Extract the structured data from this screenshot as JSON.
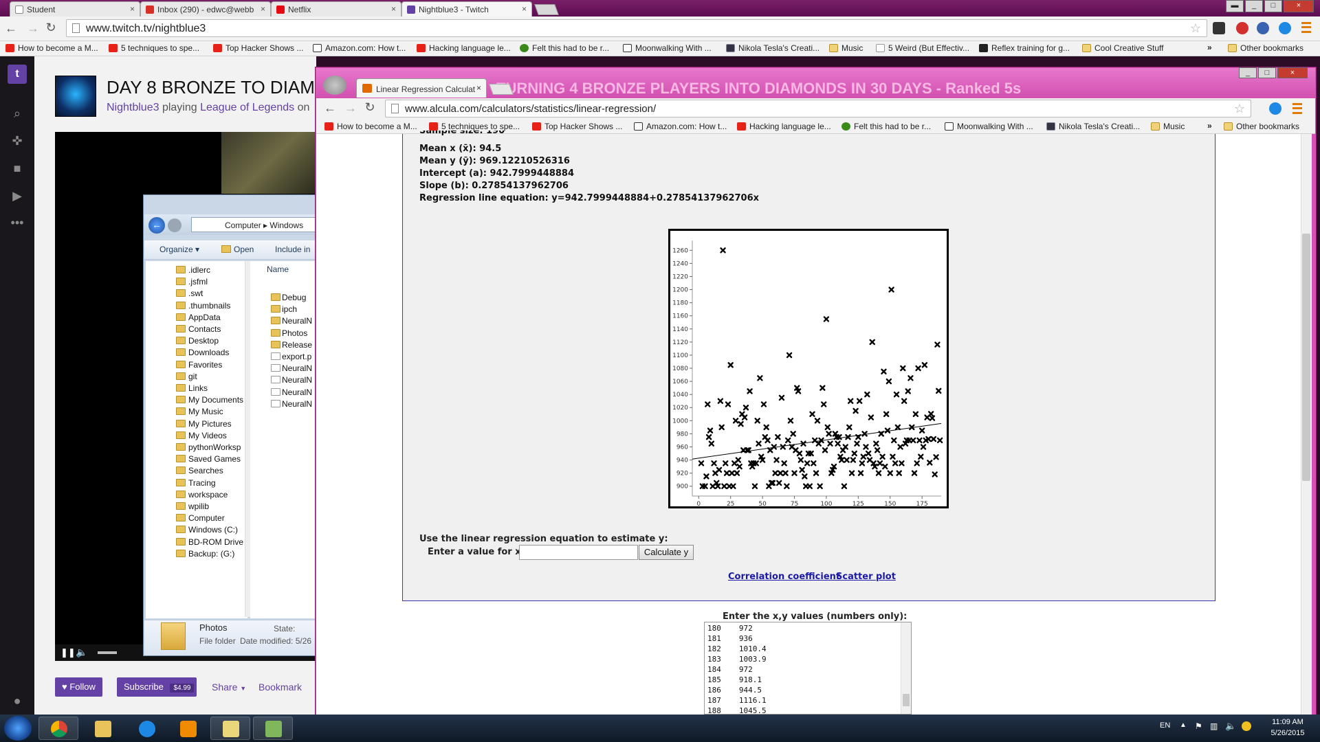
{
  "outer_browser": {
    "tabs": [
      {
        "label": "Student",
        "color": "#ffffff"
      },
      {
        "label": "Inbox (290) - edwc@webb",
        "color": "#d93025"
      },
      {
        "label": "Netflix",
        "color": "#e50914"
      },
      {
        "label": "Nightblue3 - Twitch",
        "color": "#6441a5"
      }
    ],
    "url": "www.twitch.tv/nightblue3",
    "bookmarks": [
      "How to become a M...",
      "5 techniques to spe...",
      "Top Hacker Shows ...",
      "Amazon.com: How t...",
      "Hacking language le...",
      "Felt this had to be r...",
      "Moonwalking With ...",
      "Nikola Tesla's Creati...",
      "Music",
      "5 Weird (But Effectiv...",
      "Reflex training for g...",
      "Cool Creative Stuff"
    ],
    "bookmark_overflow": "»",
    "other_bookmarks": "Other bookmarks"
  },
  "twitch": {
    "title": "DAY 8 BRONZE TO DIAM",
    "channel": "Nightblue3",
    "playing_word": "playing",
    "game": "League of Legends",
    "on_word": "on",
    "follow_label": "Follow",
    "subscribe_label": "Subscribe",
    "subscribe_price": "$4.99",
    "share_label": "Share",
    "bookmark_label": "Bookmark"
  },
  "explorer": {
    "breadcrumb": [
      "Computer",
      "Windows"
    ],
    "organize_label": "Organize",
    "open_label": "Open",
    "include_label": "Include in",
    "name_header": "Name",
    "tree": [
      ".idlerc",
      ".jsfml",
      ".swt",
      ".thumbnails",
      "AppData",
      "Contacts",
      "Desktop",
      "Downloads",
      "Favorites",
      "git",
      "Links",
      "My Documents",
      "My Music",
      "My Pictures",
      "My Videos",
      "pythonWorksp",
      "Saved Games",
      "Searches",
      "Tracing",
      "workspace",
      "wpilib",
      "Computer",
      "Windows (C:)",
      "BD-ROM Drive",
      "Backup: (G:)"
    ],
    "list": [
      "Debug",
      "ipch",
      "NeuralN",
      "Photos",
      "Release",
      "export.p",
      "NeuralN",
      "NeuralN",
      "NeuralN",
      "NeuralN"
    ],
    "details_name": "Photos",
    "details_type": "File folder",
    "details_state_label": "State:",
    "details_date_label": "Date modified:",
    "details_date": "5/26"
  },
  "inner_browser": {
    "tab_label": "Linear Regression Calculat",
    "background_title": "TURNING 4 BRONZE PLAYERS INTO DIAMONDS IN 30 DAYS - Ranked 5s",
    "url": "www.alcula.com/calculators/statistics/linear-regression/",
    "bookmarks": [
      "How to become a M...",
      "5 techniques to spe...",
      "Top Hacker Shows ...",
      "Amazon.com: How t...",
      "Hacking language le...",
      "Felt this had to be r...",
      "Moonwalking With ...",
      "Nikola Tesla's Creati...",
      "Music"
    ],
    "bookmark_overflow": "»",
    "other_bookmarks": "Other bookmarks"
  },
  "calculator": {
    "sample_size_cut": "Sample size: 190",
    "mean_x": "Mean x (x̄): 94.5",
    "mean_y": "Mean y (ȳ): 969.12210526316",
    "intercept": "Intercept (a): 942.7999448884",
    "slope": "Slope (b): 0.27854137962706",
    "equation": "Regression line equation: y=942.7999448884+0.27854137962706x",
    "estimate_title": "Use the linear regression equation to estimate y:",
    "estimate_label": "Enter a value for x:",
    "x_input_value": "",
    "calculate_label": "Calculate y",
    "link_correlation": "Correlation coefficient",
    "link_scatter": "Scatter plot",
    "xy_title": "Enter the x,y values (numbers only):",
    "xy_rows": [
      [
        "180",
        "972"
      ],
      [
        "181",
        "936"
      ],
      [
        "182",
        "1010.4"
      ],
      [
        "183",
        "1003.9"
      ],
      [
        "184",
        "972"
      ],
      [
        "185",
        "918.1"
      ],
      [
        "186",
        "944.5"
      ],
      [
        "187",
        "1116.1"
      ],
      [
        "188",
        "1045.5"
      ]
    ]
  },
  "chart_data": {
    "type": "scatter",
    "xlim": [
      -5,
      190
    ],
    "ylim": [
      885,
      1275
    ],
    "x_ticks": [
      0,
      25,
      50,
      75,
      100,
      125,
      150,
      175
    ],
    "y_ticks": [
      900,
      920,
      940,
      960,
      980,
      1000,
      1020,
      1040,
      1060,
      1080,
      1100,
      1120,
      1140,
      1160,
      1180,
      1200,
      1220,
      1240,
      1260
    ],
    "regression": {
      "intercept": 942.7999448884,
      "slope": 0.27854137962706,
      "x_range": [
        -5,
        190
      ]
    },
    "points": [
      [
        2,
        935
      ],
      [
        3,
        900
      ],
      [
        5,
        900
      ],
      [
        6,
        915
      ],
      [
        7,
        1025
      ],
      [
        8,
        975
      ],
      [
        9,
        985
      ],
      [
        10,
        965
      ],
      [
        11,
        900
      ],
      [
        12,
        935
      ],
      [
        13,
        920
      ],
      [
        14,
        905
      ],
      [
        15,
        900
      ],
      [
        16,
        925
      ],
      [
        17,
        1030
      ],
      [
        18,
        990
      ],
      [
        19,
        1260
      ],
      [
        20,
        900
      ],
      [
        21,
        935
      ],
      [
        22,
        920
      ],
      [
        23,
        1025
      ],
      [
        24,
        900
      ],
      [
        25,
        1085
      ],
      [
        26,
        920
      ],
      [
        27,
        900
      ],
      [
        28,
        935
      ],
      [
        29,
        1000
      ],
      [
        30,
        920
      ],
      [
        31,
        940
      ],
      [
        32,
        930
      ],
      [
        33,
        995
      ],
      [
        34,
        1010
      ],
      [
        35,
        955
      ],
      [
        36,
        1005
      ],
      [
        37,
        1020
      ],
      [
        38,
        955
      ],
      [
        39,
        955
      ],
      [
        40,
        1045
      ],
      [
        41,
        935
      ],
      [
        42,
        930
      ],
      [
        43,
        935
      ],
      [
        44,
        900
      ],
      [
        45,
        935
      ],
      [
        46,
        1000
      ],
      [
        47,
        965
      ],
      [
        48,
        1065
      ],
      [
        49,
        945
      ],
      [
        50,
        940
      ],
      [
        51,
        1025
      ],
      [
        52,
        975
      ],
      [
        53,
        990
      ],
      [
        54,
        970
      ],
      [
        55,
        900
      ],
      [
        56,
        955
      ],
      [
        57,
        905
      ],
      [
        58,
        905
      ],
      [
        59,
        960
      ],
      [
        60,
        920
      ],
      [
        61,
        940
      ],
      [
        62,
        975
      ],
      [
        63,
        905
      ],
      [
        64,
        920
      ],
      [
        65,
        1035
      ],
      [
        66,
        960
      ],
      [
        67,
        935
      ],
      [
        68,
        920
      ],
      [
        69,
        900
      ],
      [
        70,
        970
      ],
      [
        71,
        1100
      ],
      [
        72,
        1000
      ],
      [
        73,
        960
      ],
      [
        74,
        980
      ],
      [
        75,
        920
      ],
      [
        76,
        955
      ],
      [
        77,
        1050
      ],
      [
        78,
        1045
      ],
      [
        79,
        950
      ],
      [
        80,
        940
      ],
      [
        81,
        925
      ],
      [
        82,
        965
      ],
      [
        83,
        915
      ],
      [
        84,
        900
      ],
      [
        85,
        935
      ],
      [
        86,
        950
      ],
      [
        87,
        900
      ],
      [
        88,
        950
      ],
      [
        89,
        1010
      ],
      [
        90,
        935
      ],
      [
        91,
        970
      ],
      [
        92,
        920
      ],
      [
        93,
        1000
      ],
      [
        94,
        965
      ],
      [
        95,
        900
      ],
      [
        96,
        970
      ],
      [
        97,
        1050
      ],
      [
        98,
        1025
      ],
      [
        99,
        955
      ],
      [
        100,
        1155
      ],
      [
        101,
        990
      ],
      [
        102,
        980
      ],
      [
        103,
        965
      ],
      [
        104,
        920
      ],
      [
        105,
        925
      ],
      [
        106,
        930
      ],
      [
        107,
        980
      ],
      [
        108,
        975
      ],
      [
        109,
        965
      ],
      [
        110,
        975
      ],
      [
        111,
        945
      ],
      [
        112,
        940
      ],
      [
        113,
        955
      ],
      [
        114,
        900
      ],
      [
        115,
        960
      ],
      [
        116,
        940
      ],
      [
        117,
        975
      ],
      [
        118,
        990
      ],
      [
        119,
        1030
      ],
      [
        120,
        920
      ],
      [
        121,
        940
      ],
      [
        122,
        950
      ],
      [
        123,
        1015
      ],
      [
        124,
        965
      ],
      [
        125,
        975
      ],
      [
        126,
        1030
      ],
      [
        127,
        920
      ],
      [
        128,
        935
      ],
      [
        129,
        945
      ],
      [
        130,
        980
      ],
      [
        131,
        960
      ],
      [
        132,
        1040
      ],
      [
        133,
        950
      ],
      [
        134,
        940
      ],
      [
        135,
        1005
      ],
      [
        136,
        1120
      ],
      [
        137,
        935
      ],
      [
        138,
        930
      ],
      [
        139,
        965
      ],
      [
        140,
        955
      ],
      [
        141,
        920
      ],
      [
        142,
        935
      ],
      [
        143,
        980
      ],
      [
        144,
        945
      ],
      [
        145,
        1075
      ],
      [
        146,
        930
      ],
      [
        147,
        1010
      ],
      [
        148,
        985
      ],
      [
        149,
        1060
      ],
      [
        150,
        920
      ],
      [
        151,
        1200
      ],
      [
        152,
        945
      ],
      [
        153,
        970
      ],
      [
        154,
        935
      ],
      [
        155,
        1040
      ],
      [
        156,
        990
      ],
      [
        157,
        920
      ],
      [
        158,
        960
      ],
      [
        159,
        935
      ],
      [
        160,
        1080
      ],
      [
        161,
        1030
      ],
      [
        162,
        965
      ],
      [
        163,
        970
      ],
      [
        164,
        1045
      ],
      [
        165,
        970
      ],
      [
        166,
        1065
      ],
      [
        167,
        990
      ],
      [
        168,
        970
      ],
      [
        169,
        920
      ],
      [
        170,
        1010
      ],
      [
        171,
        935
      ],
      [
        172,
        1080
      ],
      [
        173,
        970
      ],
      [
        174,
        945
      ],
      [
        175,
        985
      ],
      [
        176,
        960
      ],
      [
        177,
        1085
      ],
      [
        178,
        970
      ],
      [
        179,
        1005
      ],
      [
        180,
        972
      ],
      [
        181,
        936
      ],
      [
        182,
        1010.4
      ],
      [
        183,
        1003.9
      ],
      [
        184,
        972
      ],
      [
        185,
        918.1
      ],
      [
        186,
        944.5
      ],
      [
        187,
        1116.1
      ],
      [
        188,
        1045.5
      ],
      [
        189,
        970
      ]
    ]
  },
  "taskbar": {
    "lang": "EN",
    "time": "11:09 AM",
    "date": "5/26/2015"
  },
  "colors": {
    "twitch_purple": "#6441a5",
    "link_blue": "#1a1aa6"
  }
}
